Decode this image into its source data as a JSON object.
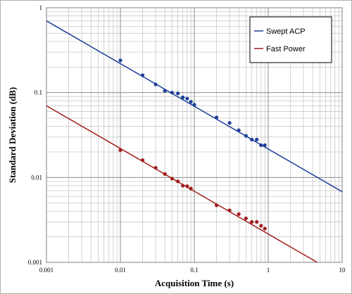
{
  "chart_data": {
    "type": "scatter",
    "xlabel": "Acquisition Time (s)",
    "ylabel": "Standard Deviation (dB)",
    "x_scale": "log",
    "y_scale": "log",
    "xlim": [
      0.001,
      10
    ],
    "ylim": [
      0.001,
      1
    ],
    "x_ticks": [
      "0.001",
      "0.01",
      "0.1",
      "1",
      "10"
    ],
    "y_ticks": [
      "1",
      "0.1",
      "0.01",
      "0.001"
    ],
    "grid": true,
    "legend_position": "top-right",
    "series": [
      {
        "name": "Swept ACP",
        "color": "#1f3f99",
        "x": [
          0.01,
          0.02,
          0.03,
          0.04,
          0.05,
          0.06,
          0.07,
          0.08,
          0.09,
          0.1,
          0.2,
          0.3,
          0.4,
          0.5,
          0.6,
          0.7,
          0.8,
          0.9
        ],
        "y": [
          0.24,
          0.16,
          0.125,
          0.105,
          0.1,
          0.098,
          0.088,
          0.085,
          0.078,
          0.072,
          0.051,
          0.044,
          0.036,
          0.031,
          0.028,
          0.028,
          0.024,
          0.024
        ],
        "trendline": {
          "x": [
            0.001,
            10
          ],
          "y": [
            0.7,
            0.0068
          ]
        }
      },
      {
        "name": "Fast Power",
        "color": "#a01c1c",
        "x": [
          0.01,
          0.02,
          0.03,
          0.04,
          0.05,
          0.06,
          0.07,
          0.08,
          0.09,
          0.2,
          0.3,
          0.4,
          0.5,
          0.6,
          0.7,
          0.8,
          0.9
        ],
        "y": [
          0.021,
          0.016,
          0.013,
          0.011,
          0.0097,
          0.009,
          0.008,
          0.0079,
          0.0074,
          0.0047,
          0.0041,
          0.0037,
          0.0033,
          0.003,
          0.003,
          0.0027,
          0.0025
        ],
        "trendline": {
          "x": [
            0.001,
            4.6
          ],
          "y": [
            0.07,
            0.001
          ]
        }
      }
    ]
  }
}
